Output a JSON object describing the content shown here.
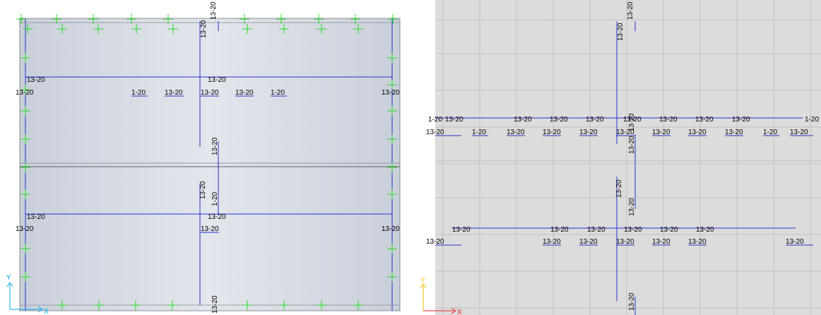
{
  "left_view": {
    "labels": {
      "top_col": "13-20",
      "col_upper_a": "13-20",
      "col_upper_b": "13-20",
      "beam_upper_left": "13-20",
      "beam_upper_mid": "13-20",
      "row1_left": "13-20",
      "row1_a": "1-20",
      "row1_b": "13-20",
      "row1_c": "13-20",
      "row1_d": "13-20",
      "row1_e": "1-20",
      "row1_right": "13-20",
      "col_mid_1": "13-20",
      "col_mid_2": "13-20",
      "col_mid_3": "1-20",
      "beam_lower_left": "13-20",
      "beam_lower_mid": "13-20",
      "row2_left": "13-20",
      "row2_mid": "13-20",
      "row2_right": "13-20",
      "bottom_col": "13-20"
    },
    "axis": {
      "y": "Y",
      "x": "X"
    },
    "colors": {
      "background": "#d4d9e2",
      "lines": "#2233cc",
      "markers": "#22dd22"
    }
  },
  "right_view": {
    "labels": {
      "top_col": "13-20",
      "col_upper": "13-20",
      "beam_row": [
        "1-20",
        "13-20",
        "13-20",
        "13-20",
        "13-20",
        "13-20",
        "13-20",
        "13-20",
        "13-20",
        "1-20"
      ],
      "label_row": [
        "13-20",
        "1-20",
        "13-20",
        "13-20",
        "13-20",
        "13-20",
        "13-20",
        "13-20",
        "13-20",
        "1-20",
        "13-20"
      ],
      "col_mid_a": "13-20",
      "col_mid_b": "13-20",
      "col_low_a": "13-20",
      "col_low_b": "13-20",
      "beam_row2": [
        "13-20",
        "13-20",
        "13-20",
        "13-20",
        "13-20",
        "13-20"
      ],
      "label_row2": [
        "13-20",
        "13-20",
        "13-20",
        "13-20",
        "13-20",
        "13-20",
        "13-20"
      ],
      "bottom_col": "13-20"
    },
    "axis": {
      "y": "Y",
      "x": "X"
    },
    "colors": {
      "background": "#dcdcdc",
      "grid": "#c4c4c4",
      "lines": "#2233cc"
    }
  }
}
